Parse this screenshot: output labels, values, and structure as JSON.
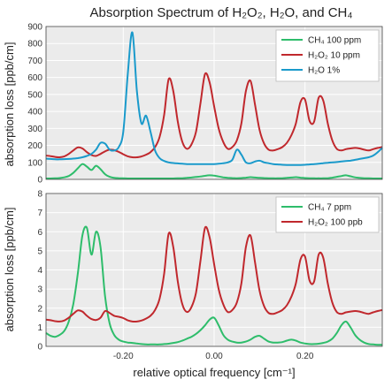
{
  "title": "Absorption Spectrum of H₂O₂, H₂O, and CH₄",
  "colors": {
    "ch4": "#2ebd6b",
    "h2o2": "#c0282d",
    "h2o": "#1a9acb",
    "plot_bg": "#ebebeb"
  },
  "chart_data": [
    {
      "type": "line",
      "panel": "top",
      "ylabel": "absorption loss [ppb/cm]",
      "xlim": [
        -0.37,
        0.37
      ],
      "ylim": [
        0,
        900
      ],
      "yticks": [
        "0",
        "100",
        "200",
        "300",
        "400",
        "500",
        "600",
        "700",
        "800",
        "900"
      ],
      "grid": true,
      "legend_position": "top-right",
      "x": [
        -0.37,
        -0.36,
        -0.35,
        -0.34,
        -0.33,
        -0.32,
        -0.31,
        -0.3,
        -0.29,
        -0.28,
        -0.27,
        -0.26,
        -0.25,
        -0.24,
        -0.23,
        -0.22,
        -0.21,
        -0.2,
        -0.19,
        -0.18,
        -0.17,
        -0.16,
        -0.15,
        -0.14,
        -0.13,
        -0.12,
        -0.11,
        -0.1,
        -0.09,
        -0.08,
        -0.07,
        -0.06,
        -0.05,
        -0.04,
        -0.03,
        -0.02,
        -0.01,
        0.0,
        0.01,
        0.02,
        0.03,
        0.04,
        0.05,
        0.06,
        0.07,
        0.08,
        0.09,
        0.1,
        0.11,
        0.12,
        0.13,
        0.14,
        0.15,
        0.16,
        0.17,
        0.18,
        0.19,
        0.2,
        0.21,
        0.22,
        0.23,
        0.24,
        0.25,
        0.26,
        0.27,
        0.28,
        0.29,
        0.3,
        0.31,
        0.32,
        0.33,
        0.34,
        0.35,
        0.36,
        0.37
      ],
      "series": [
        {
          "name": "CH₄ 100 ppm",
          "color_key": "ch4",
          "values": [
            5,
            5,
            6,
            8,
            12,
            20,
            38,
            65,
            90,
            75,
            55,
            80,
            60,
            30,
            15,
            9,
            7,
            6,
            5,
            5,
            5,
            5,
            5,
            5,
            5,
            5,
            5,
            5,
            5,
            6,
            7,
            9,
            11,
            14,
            17,
            21,
            24,
            22,
            17,
            12,
            9,
            8,
            7,
            8,
            10,
            13,
            11,
            9,
            8,
            7,
            6,
            6,
            7,
            9,
            11,
            13,
            10,
            8,
            7,
            6,
            6,
            6,
            7,
            10,
            15,
            20,
            24,
            18,
            12,
            9,
            7,
            6,
            5,
            5,
            5
          ]
        },
        {
          "name": "H₂O₂ 10 ppm",
          "color_key": "h2o2",
          "values": [
            140,
            137,
            132,
            130,
            135,
            150,
            170,
            188,
            182,
            160,
            143,
            138,
            150,
            165,
            175,
            172,
            162,
            148,
            136,
            130,
            130,
            135,
            145,
            160,
            190,
            250,
            380,
            590,
            520,
            340,
            220,
            180,
            205,
            280,
            450,
            620,
            570,
            430,
            300,
            220,
            180,
            190,
            230,
            330,
            520,
            580,
            440,
            290,
            210,
            175,
            170,
            178,
            190,
            215,
            260,
            330,
            455,
            470,
            345,
            340,
            480,
            465,
            330,
            230,
            180,
            170,
            178,
            182,
            185,
            182,
            175,
            170,
            178,
            185,
            190
          ]
        },
        {
          "name": "H₂O 1%",
          "color_key": "h2o",
          "values": [
            122,
            120,
            118,
            118,
            119,
            120,
            122,
            125,
            130,
            138,
            150,
            175,
            215,
            210,
            175,
            170,
            190,
            280,
            620,
            865,
            520,
            330,
            375,
            280,
            170,
            125,
            108,
            100,
            96,
            94,
            92,
            90,
            90,
            90,
            90,
            90,
            90,
            90,
            92,
            95,
            100,
            115,
            175,
            145,
            100,
            95,
            105,
            110,
            100,
            95,
            90,
            88,
            86,
            85,
            85,
            85,
            85,
            86,
            88,
            90,
            92,
            95,
            98,
            100,
            102,
            105,
            108,
            110,
            115,
            120,
            125,
            130,
            140,
            160,
            185
          ]
        }
      ]
    },
    {
      "type": "line",
      "panel": "bottom",
      "ylabel": "absorption loss [ppb/cm]",
      "xlabel": "relative optical frequency [cm⁻¹]",
      "xlim": [
        -0.37,
        0.37
      ],
      "ylim": [
        0,
        8
      ],
      "yticks": [
        "0",
        "1",
        "2",
        "3",
        "4",
        "5",
        "6",
        "7",
        "8"
      ],
      "xticks": [
        -0.2,
        0.0,
        0.2
      ],
      "xtick_labels": [
        "-0.20",
        "0.00",
        "0.20"
      ],
      "grid": true,
      "legend_position": "top-right",
      "x": [
        -0.37,
        -0.36,
        -0.35,
        -0.34,
        -0.33,
        -0.32,
        -0.31,
        -0.3,
        -0.29,
        -0.28,
        -0.27,
        -0.26,
        -0.25,
        -0.24,
        -0.23,
        -0.22,
        -0.21,
        -0.2,
        -0.19,
        -0.18,
        -0.17,
        -0.16,
        -0.15,
        -0.14,
        -0.13,
        -0.12,
        -0.11,
        -0.1,
        -0.09,
        -0.08,
        -0.07,
        -0.06,
        -0.05,
        -0.04,
        -0.03,
        -0.02,
        -0.01,
        0.0,
        0.01,
        0.02,
        0.03,
        0.04,
        0.05,
        0.06,
        0.07,
        0.08,
        0.09,
        0.1,
        0.11,
        0.12,
        0.13,
        0.14,
        0.15,
        0.16,
        0.17,
        0.18,
        0.19,
        0.2,
        0.21,
        0.22,
        0.23,
        0.24,
        0.25,
        0.26,
        0.27,
        0.28,
        0.29,
        0.3,
        0.31,
        0.32,
        0.33,
        0.34,
        0.35,
        0.36,
        0.37
      ],
      "series": [
        {
          "name": "CH₄ 7 ppm",
          "color_key": "ch4",
          "values": [
            0.7,
            0.55,
            0.5,
            0.6,
            0.8,
            1.3,
            2.2,
            3.8,
            5.8,
            6.2,
            4.8,
            6.0,
            5.2,
            2.6,
            1.2,
            0.6,
            0.35,
            0.25,
            0.2,
            0.18,
            0.15,
            0.12,
            0.1,
            0.1,
            0.1,
            0.1,
            0.12,
            0.14,
            0.18,
            0.22,
            0.3,
            0.4,
            0.5,
            0.65,
            0.85,
            1.1,
            1.4,
            1.5,
            1.1,
            0.6,
            0.35,
            0.25,
            0.2,
            0.2,
            0.25,
            0.35,
            0.5,
            0.55,
            0.4,
            0.25,
            0.2,
            0.2,
            0.22,
            0.3,
            0.35,
            0.3,
            0.2,
            0.15,
            0.12,
            0.12,
            0.14,
            0.18,
            0.25,
            0.4,
            0.7,
            1.1,
            1.3,
            1.0,
            0.6,
            0.35,
            0.2,
            0.12,
            0.1,
            0.08,
            0.08
          ]
        },
        {
          "name": "H₂O₂ 100 ppb",
          "color_key": "h2o2",
          "values": [
            1.4,
            1.37,
            1.32,
            1.3,
            1.35,
            1.5,
            1.7,
            1.88,
            1.82,
            1.6,
            1.43,
            1.38,
            1.5,
            1.85,
            1.75,
            1.6,
            1.55,
            1.48,
            1.36,
            1.3,
            1.3,
            1.35,
            1.45,
            1.6,
            1.9,
            2.5,
            3.8,
            5.9,
            5.2,
            3.4,
            2.2,
            1.8,
            2.05,
            2.8,
            4.5,
            6.2,
            5.7,
            4.3,
            3.0,
            2.2,
            1.8,
            1.9,
            2.3,
            3.3,
            5.2,
            5.8,
            4.4,
            2.9,
            2.1,
            1.75,
            1.7,
            1.78,
            1.9,
            2.15,
            2.6,
            3.3,
            4.55,
            4.7,
            3.45,
            3.4,
            4.8,
            4.65,
            3.3,
            2.3,
            1.8,
            1.7,
            1.78,
            1.82,
            1.85,
            1.82,
            1.75,
            1.7,
            1.78,
            1.85,
            1.9
          ]
        }
      ]
    }
  ]
}
